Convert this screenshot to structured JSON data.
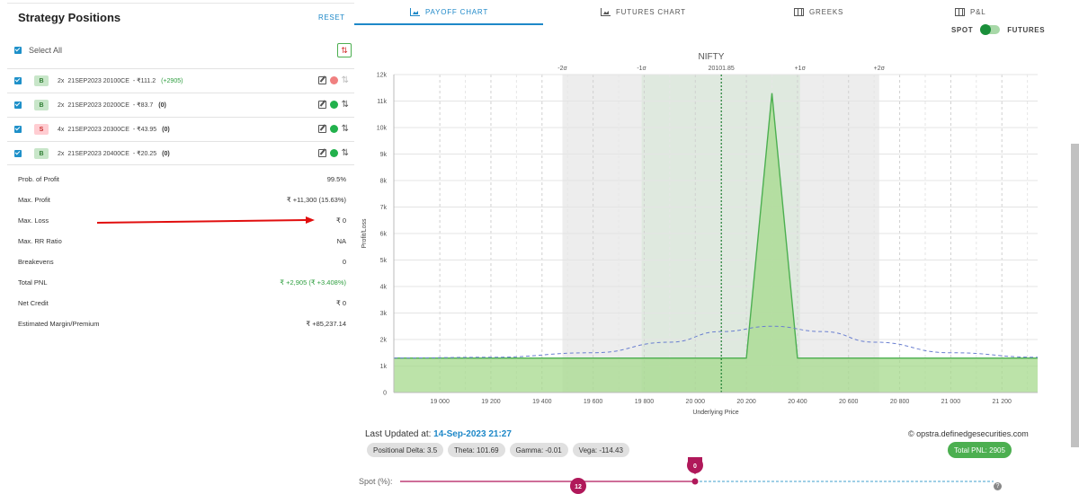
{
  "panel": {
    "title": "Strategy Positions",
    "reset_label": "RESET",
    "select_all_label": "Select All"
  },
  "positions": [
    {
      "side": "B",
      "qty": "2x",
      "instrument": "21SEP2023 20100CE",
      "price": "- ₹111.2",
      "pnl": "(+2905)",
      "status": "red"
    },
    {
      "side": "B",
      "qty": "2x",
      "instrument": "21SEP2023 20200CE",
      "price": "- ₹83.7",
      "pnl": "(0)",
      "status": "green"
    },
    {
      "side": "S",
      "qty": "4x",
      "instrument": "21SEP2023 20300CE",
      "price": "- ₹43.95",
      "pnl": "(0)",
      "status": "green"
    },
    {
      "side": "B",
      "qty": "2x",
      "instrument": "21SEP2023 20400CE",
      "price": "- ₹20.25",
      "pnl": "(0)",
      "status": "green"
    }
  ],
  "metrics": [
    {
      "label": "Prob. of Profit",
      "value": "99.5%"
    },
    {
      "label": "Max. Profit",
      "value": "₹ +11,300 (15.63%)"
    },
    {
      "label": "Max. Loss",
      "value": "₹ 0"
    },
    {
      "label": "Max. RR Ratio",
      "value": "NA"
    },
    {
      "label": "Breakevens",
      "value": "0"
    },
    {
      "label": "Total PNL",
      "value": "₹ +2,905 (₹ +3.408%)"
    },
    {
      "label": "Net Credit",
      "value": "₹ 0"
    },
    {
      "label": "Estimated Margin/Premium",
      "value": "₹ +85,237.14"
    }
  ],
  "tabs": [
    {
      "label": "PAYOFF CHART",
      "icon": "chart-area-icon",
      "active": true
    },
    {
      "label": "FUTURES CHART",
      "icon": "chart-area-icon",
      "active": false
    },
    {
      "label": "GREEKS",
      "icon": "table-icon",
      "active": false
    },
    {
      "label": "P&L",
      "icon": "table-icon",
      "active": false
    }
  ],
  "toggle": {
    "left_label": "SPOT",
    "right_label": "FUTURES"
  },
  "colors": {
    "accent": "#1e88c8",
    "profit": "#4caf50",
    "loss": "#e53935",
    "slider": "#b0185a"
  },
  "chart_data": {
    "type": "area",
    "title": "NIFTY",
    "xlabel": "Underlying Price",
    "ylabel": "Profit/Loss",
    "xlim": [
      18820,
      21340
    ],
    "ylim": [
      0,
      12000
    ],
    "x_ticks": [
      19000,
      19200,
      19400,
      19600,
      19800,
      20000,
      20200,
      20400,
      20600,
      20800,
      21000,
      21200
    ],
    "x_tick_labels": [
      "19 000",
      "19 200",
      "19 400",
      "19 600",
      "19 800",
      "20 000",
      "20 200",
      "20 400",
      "20 600",
      "20 800",
      "21 000",
      "21 200"
    ],
    "y_ticks": [
      0,
      1000,
      2000,
      3000,
      4000,
      5000,
      6000,
      7000,
      8000,
      9000,
      10000,
      11000,
      12000
    ],
    "y_tick_labels": [
      "0",
      "1k",
      "2k",
      "3k",
      "4k",
      "5k",
      "6k",
      "7k",
      "8k",
      "9k",
      "10k",
      "11k",
      "12k"
    ],
    "series": [
      {
        "style": "payoff-area",
        "x": [
          18820,
          20010,
          20100,
          20200,
          20300,
          20400,
          21340
        ],
        "y": [
          1300,
          1300,
          1300,
          1300,
          11300,
          1300,
          1300
        ]
      },
      {
        "style": "probability-dashed",
        "x": [
          18820,
          19200,
          19600,
          19900,
          20100,
          20300,
          20500,
          20700,
          21000,
          21340
        ],
        "y": [
          1300,
          1330,
          1500,
          1900,
          2300,
          2500,
          2300,
          1900,
          1500,
          1330
        ]
      }
    ],
    "spot": {
      "x": 20101.85,
      "label": "20101.85"
    },
    "sigma_bands": [
      {
        "label": "-2σ",
        "x": 19480
      },
      {
        "label": "-1σ",
        "x": 19790
      },
      {
        "label": "+1σ",
        "x": 20410
      },
      {
        "label": "+2σ",
        "x": 20720
      }
    ],
    "grid": true
  },
  "footer": {
    "updated_prefix": "Last Updated at:",
    "updated_time": "14-Sep-2023 21:27",
    "copyright": "© opstra.definedgesecurities.com",
    "greeks": [
      "Positional Delta: 3.5",
      "Theta: 101.69",
      "Gamma: -0.01",
      "Vega: -114.43"
    ],
    "total_pnl": "Total PNL: 2905",
    "spot_label": "Spot (%):",
    "slider_value": "0",
    "slider_marker": "12",
    "slider_value_pct": 0
  }
}
